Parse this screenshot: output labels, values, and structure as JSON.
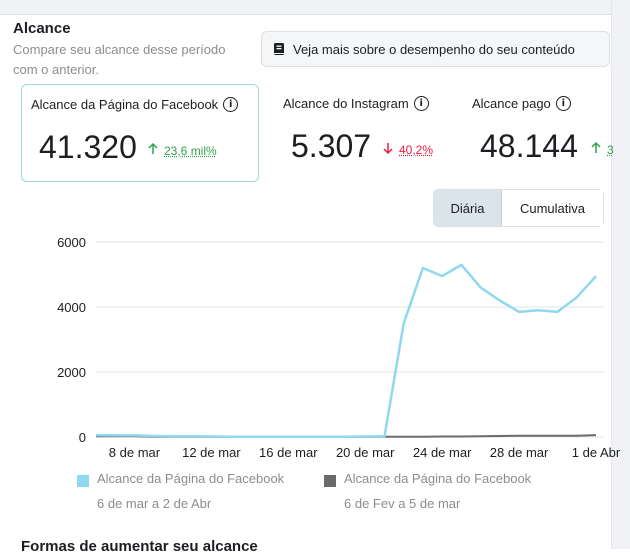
{
  "section": {
    "title": "Alcance",
    "subtitle": "Compare seu alcance desse período com o anterior.",
    "more_button": "Veja mais sobre o desempenho do seu conteúdo",
    "more_icon": "book-icon",
    "footer_heading": "Formas de aumentar seu alcance"
  },
  "cards": [
    {
      "label": "Alcance da Página do Facebook",
      "value": "41.320",
      "delta": "23,6 mil%",
      "direction": "up",
      "selected": true
    },
    {
      "label": "Alcance do Instagram",
      "value": "5.307",
      "delta": "40,2%",
      "direction": "down",
      "selected": false
    },
    {
      "label": "Alcance pago",
      "value": "48.144",
      "delta": "3",
      "direction": "up",
      "selected": false
    }
  ],
  "toggle": {
    "daily": "Diária",
    "cumulative": "Cumulativa",
    "active": "daily"
  },
  "colors": {
    "current": "#8fd8ef",
    "previous": "#6b6b6b",
    "up": "#31a24c",
    "down": "#e41e3f",
    "selected_border": "#9fd6dc"
  },
  "chart_data": {
    "type": "line",
    "y_ticks": [
      "6000",
      "4000",
      "2000",
      "0"
    ],
    "ylim": [
      0,
      6000
    ],
    "grid": true,
    "x_tick_labels": [
      "8 de mar",
      "12 de mar",
      "16 de mar",
      "20 de mar",
      "24 de mar",
      "28 de mar",
      "1 de Abr"
    ],
    "x_tick_index": [
      2,
      6,
      10,
      14,
      18,
      22,
      26
    ],
    "series": [
      {
        "name": "Alcance da Página do Facebook",
        "range": "6 de mar a 2 de Abr",
        "color": "#8fd8ef",
        "values": [
          60,
          50,
          50,
          30,
          20,
          20,
          15,
          10,
          10,
          10,
          10,
          10,
          10,
          10,
          15,
          20,
          3500,
          5200,
          4950,
          5300,
          4600,
          4200,
          3850,
          3900,
          3850,
          4300,
          4950
        ]
      },
      {
        "name": "Alcance da Página do Facebook",
        "range": "6 de Fev a 5 de mar",
        "color": "#6b6b6b",
        "values": [
          20,
          20,
          20,
          10,
          10,
          10,
          10,
          10,
          10,
          10,
          10,
          10,
          10,
          10,
          10,
          10,
          10,
          10,
          15,
          15,
          20,
          30,
          40,
          40,
          40,
          40,
          60
        ]
      }
    ],
    "legend_position": "bottom"
  }
}
